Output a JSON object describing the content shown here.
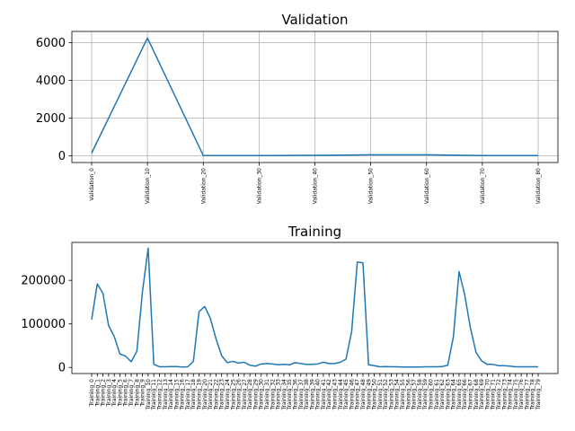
{
  "chart_data": [
    {
      "type": "line",
      "title": "Validation",
      "grid": true,
      "categories": [
        "Validation_0",
        "Validation_10",
        "Validation_20",
        "Validation_30",
        "Validation_40",
        "Validation_50",
        "Validation_60",
        "Validation_70",
        "Validation_80"
      ],
      "values": [
        150,
        6250,
        20,
        20,
        30,
        60,
        60,
        20,
        20
      ],
      "yticks": [
        0,
        2000,
        4000,
        6000
      ],
      "ytick_labels": [
        "0",
        "2000",
        "4000",
        "6000"
      ],
      "ylim": [
        -350,
        6600
      ],
      "series_color": "#1f77b4"
    },
    {
      "type": "line",
      "title": "Training",
      "grid": false,
      "categories": [
        "Training_0",
        "Training_1",
        "Training_2",
        "Training_3",
        "Training_4",
        "Training_5",
        "Training_6",
        "Training_7",
        "Training_8",
        "Training_9",
        "Training_10",
        "Training_11",
        "Training_12",
        "Training_13",
        "Training_14",
        "Training_15",
        "Training_16",
        "Training_17",
        "Training_18",
        "Training_19",
        "Training_20",
        "Training_21",
        "Training_22",
        "Training_23",
        "Training_24",
        "Training_25",
        "Training_26",
        "Training_27",
        "Training_28",
        "Training_29",
        "Training_30",
        "Training_31",
        "Training_32",
        "Training_33",
        "Training_34",
        "Training_35",
        "Training_36",
        "Training_37",
        "Training_38",
        "Training_39",
        "Training_40",
        "Training_41",
        "Training_42",
        "Training_43",
        "Training_44",
        "Training_45",
        "Training_46",
        "Training_47",
        "Training_48",
        "Training_49",
        "Training_50",
        "Training_51",
        "Training_52",
        "Training_53",
        "Training_54",
        "Training_55",
        "Training_56",
        "Training_57",
        "Training_58",
        "Training_59",
        "Training_60",
        "Training_61",
        "Training_62",
        "Training_63",
        "Training_64",
        "Training_65",
        "Training_66",
        "Training_67",
        "Training_68",
        "Training_69",
        "Training_70",
        "Training_71",
        "Training_72",
        "Training_73",
        "Training_74",
        "Training_75",
        "Training_76",
        "Training_77",
        "Training_78",
        "Training_79"
      ],
      "values": [
        110000,
        192000,
        170000,
        96000,
        71000,
        31000,
        26000,
        13000,
        37000,
        175000,
        274000,
        7000,
        1500,
        1500,
        2000,
        2000,
        1000,
        1500,
        14000,
        128000,
        140000,
        113000,
        66000,
        27000,
        11000,
        14000,
        10000,
        12000,
        5000,
        3000,
        8000,
        9000,
        8000,
        6000,
        7000,
        6000,
        11000,
        9000,
        7000,
        7000,
        8000,
        12000,
        9000,
        9000,
        12000,
        19000,
        82000,
        242000,
        240000,
        6000,
        4000,
        1500,
        2000,
        1500,
        1500,
        1000,
        1000,
        1000,
        1000,
        1500,
        1500,
        1500,
        2000,
        5000,
        70000,
        220000,
        167000,
        92000,
        35000,
        15000,
        7000,
        7000,
        4000,
        4000,
        3000,
        1500,
        1500,
        1500,
        1500,
        1500
      ],
      "yticks": [
        0,
        100000,
        200000
      ],
      "ytick_labels": [
        "0",
        "100000",
        "200000"
      ],
      "ylim": [
        -14000,
        287000
      ],
      "series_color": "#1f77b4"
    }
  ]
}
